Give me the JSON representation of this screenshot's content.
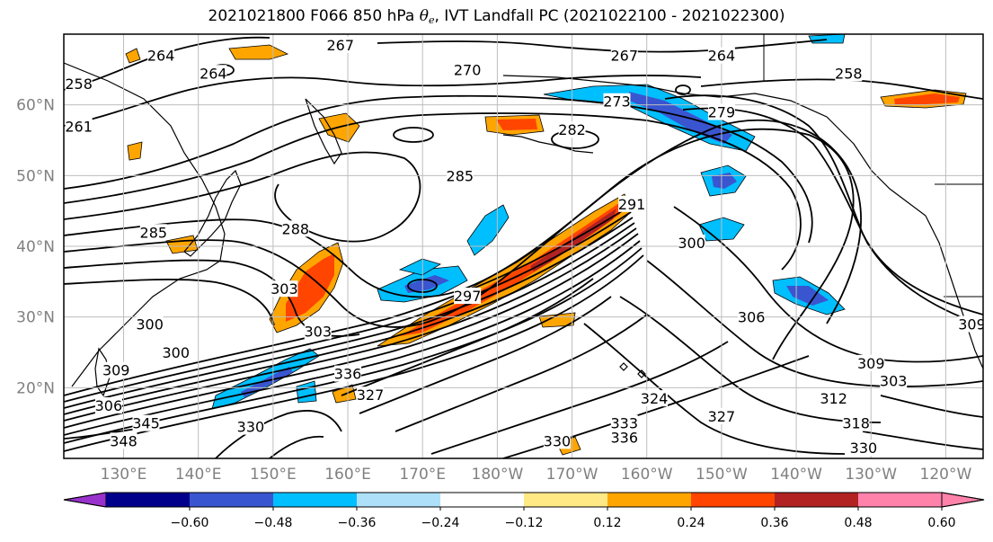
{
  "title": {
    "prefix": "2021021800 F066 850 hPa ",
    "theta_symbol": "θ",
    "theta_subscript": "e",
    "suffix": ", IVT Landfall PC (2021022100 - 2021022300)"
  },
  "map": {
    "projection": "equirectangular",
    "lon_extent": [
      122,
      245
    ],
    "lat_extent": [
      10,
      70
    ],
    "gridlines": true,
    "lat_ticks": [
      {
        "lat": 60,
        "label": "60°N"
      },
      {
        "lat": 50,
        "label": "50°N"
      },
      {
        "lat": 40,
        "label": "40°N"
      },
      {
        "lat": 30,
        "label": "30°N"
      },
      {
        "lat": 20,
        "label": "20°N"
      }
    ],
    "lon_ticks": [
      {
        "lon": 130,
        "label": "130°E"
      },
      {
        "lon": 140,
        "label": "140°E"
      },
      {
        "lon": 150,
        "label": "150°E"
      },
      {
        "lon": 160,
        "label": "160°E"
      },
      {
        "lon": 170,
        "label": "170°E"
      },
      {
        "lon": 180,
        "label": "180°W"
      },
      {
        "lon": 190,
        "label": "170°W"
      },
      {
        "lon": 200,
        "label": "160°W"
      },
      {
        "lon": 210,
        "label": "150°W"
      },
      {
        "lon": 220,
        "label": "140°W"
      },
      {
        "lon": 230,
        "label": "130°W"
      },
      {
        "lon": 240,
        "label": "120°W"
      }
    ]
  },
  "contour_labels": [
    {
      "text": "267",
      "lon": 159,
      "lat": 68.5
    },
    {
      "text": "264",
      "lon": 135,
      "lat": 67
    },
    {
      "text": "264",
      "lon": 142,
      "lat": 64.5
    },
    {
      "text": "258",
      "lon": 124,
      "lat": 63
    },
    {
      "text": "261",
      "lon": 124,
      "lat": 57
    },
    {
      "text": "270",
      "lon": 176,
      "lat": 65
    },
    {
      "text": "267",
      "lon": 197,
      "lat": 67
    },
    {
      "text": "264",
      "lon": 210,
      "lat": 67
    },
    {
      "text": "258",
      "lon": 227,
      "lat": 64.5
    },
    {
      "text": "273",
      "lon": 196,
      "lat": 60.5
    },
    {
      "text": "279",
      "lon": 210,
      "lat": 59
    },
    {
      "text": "282",
      "lon": 190,
      "lat": 56.5
    },
    {
      "text": "285",
      "lon": 175,
      "lat": 50
    },
    {
      "text": "291",
      "lon": 198,
      "lat": 46
    },
    {
      "text": "285",
      "lon": 134,
      "lat": 42
    },
    {
      "text": "288",
      "lon": 153,
      "lat": 42.5
    },
    {
      "text": "300",
      "lon": 206,
      "lat": 40.5
    },
    {
      "text": "303",
      "lon": 151.5,
      "lat": 34
    },
    {
      "text": "297",
      "lon": 176,
      "lat": 33
    },
    {
      "text": "303",
      "lon": 156,
      "lat": 28
    },
    {
      "text": "306",
      "lon": 214,
      "lat": 30
    },
    {
      "text": "300",
      "lon": 133.5,
      "lat": 29
    },
    {
      "text": "300",
      "lon": 137,
      "lat": 25
    },
    {
      "text": "309",
      "lon": 129,
      "lat": 22.5
    },
    {
      "text": "306",
      "lon": 128,
      "lat": 17.5
    },
    {
      "text": "345",
      "lon": 133,
      "lat": 15
    },
    {
      "text": "348",
      "lon": 130,
      "lat": 12.5
    },
    {
      "text": "336",
      "lon": 160,
      "lat": 22
    },
    {
      "text": "327",
      "lon": 163,
      "lat": 19
    },
    {
      "text": "324",
      "lon": 201,
      "lat": 18.5
    },
    {
      "text": "330",
      "lon": 147,
      "lat": 14.5
    },
    {
      "text": "333",
      "lon": 197,
      "lat": 15
    },
    {
      "text": "336",
      "lon": 197,
      "lat": 13
    },
    {
      "text": "330",
      "lon": 188,
      "lat": 12.5
    },
    {
      "text": "327",
      "lon": 210,
      "lat": 16
    },
    {
      "text": "309",
      "lon": 230,
      "lat": 23.5
    },
    {
      "text": "303",
      "lon": 233,
      "lat": 21
    },
    {
      "text": "312",
      "lon": 225,
      "lat": 18.5
    },
    {
      "text": "318",
      "lon": 228,
      "lat": 15
    },
    {
      "text": "330",
      "lon": 229,
      "lat": 11.5
    },
    {
      "text": "309",
      "lon": 243.5,
      "lat": 29
    }
  ],
  "colorbar": {
    "extend": "both",
    "colors": [
      "#9932cc",
      "#00008b",
      "#3a55d0",
      "#00bfff",
      "#aee0fa",
      "#ffffff",
      "#ffe985",
      "#ffa500",
      "#ff4500",
      "#b22222",
      "#ff82ab",
      "#ff82ab"
    ],
    "boundaries": [
      -0.6,
      -0.48,
      -0.36,
      -0.24,
      -0.12,
      0.12,
      0.24,
      0.36,
      0.48,
      0.6
    ],
    "tick_labels": [
      "−0.60",
      "−0.48",
      "−0.36",
      "−0.24",
      "−0.12",
      "0.12",
      "0.24",
      "0.36",
      "0.48",
      "0.60"
    ]
  }
}
